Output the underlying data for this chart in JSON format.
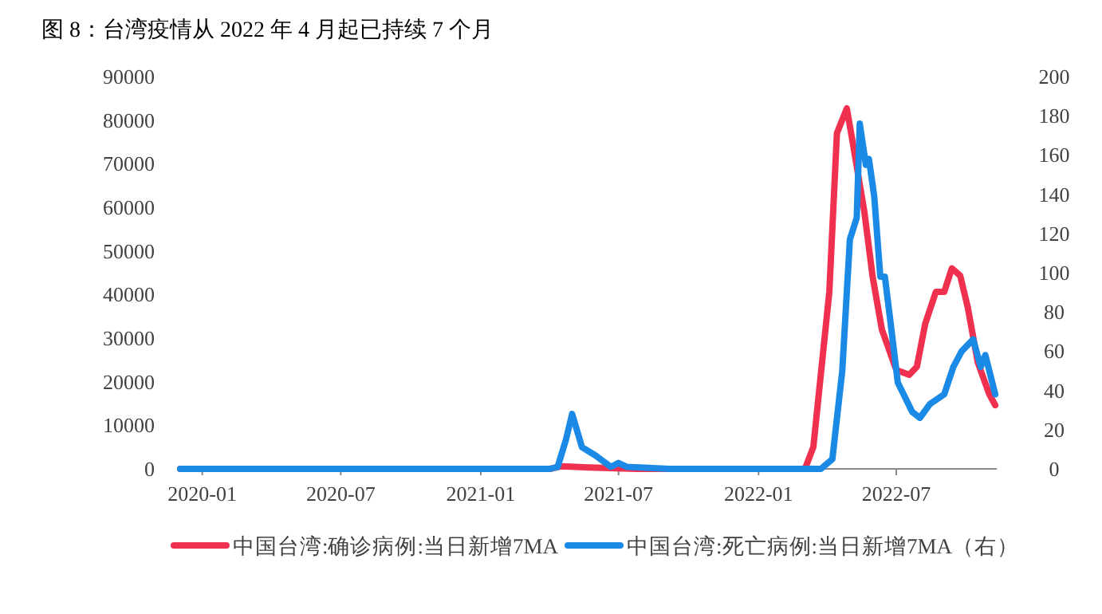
{
  "chart_data": {
    "type": "line",
    "title": "图 8：台湾疫情从 2022 年 4 月起已持续 7 个月",
    "xlim": [
      "2019-12-03",
      "2022-11-10"
    ],
    "xticks": [
      {
        "value": "2020-01-01",
        "label": "2020-01"
      },
      {
        "value": "2020-07-01",
        "label": "2020-07"
      },
      {
        "value": "2021-01-01",
        "label": "2021-01"
      },
      {
        "value": "2021-07-01",
        "label": "2021-07"
      },
      {
        "value": "2022-01-01",
        "label": "2022-01"
      },
      {
        "value": "2022-07-01",
        "label": "2022-07"
      }
    ],
    "ylim": [
      0,
      90000
    ],
    "yticks": [
      0,
      10000,
      20000,
      30000,
      40000,
      50000,
      60000,
      70000,
      80000,
      90000
    ],
    "y2lim": [
      0,
      200
    ],
    "y2ticks": [
      0,
      20,
      40,
      60,
      80,
      100,
      120,
      140,
      160,
      180,
      200
    ],
    "legend": "bottom",
    "grid": false,
    "line_style": "solid",
    "marker": "none",
    "series": [
      {
        "name": "中国台湾:确诊病例:当日新增7MA",
        "color": "#f0304f",
        "x": [
          "2019-12-03",
          "2021-04-02",
          "2021-04-17",
          "2021-05-24",
          "2021-07-26",
          "2022-03-03",
          "2022-03-14",
          "2022-04-04",
          "2022-04-14",
          "2022-04-27",
          "2022-05-05",
          "2022-05-20",
          "2022-05-31",
          "2022-06-12",
          "2022-07-01",
          "2022-07-18",
          "2022-07-28",
          "2022-08-08",
          "2022-08-22",
          "2022-09-02",
          "2022-09-12",
          "2022-09-23",
          "2022-10-03",
          "2022-10-16",
          "2022-10-31",
          "2022-11-08"
        ],
        "values": [
          0,
          0,
          600,
          300,
          0,
          0,
          5000,
          40600,
          77000,
          82700,
          74600,
          59000,
          44000,
          32000,
          22700,
          21600,
          23400,
          33300,
          40600,
          40600,
          46000,
          44300,
          37000,
          24500,
          17200,
          14600
        ]
      },
      {
        "name": "中国台湾:死亡病例:当日新增7MA（右）",
        "color": "#1a8ae6",
        "axis": "y2",
        "x": [
          "2019-12-03",
          "2021-04-02",
          "2021-04-12",
          "2021-04-23",
          "2021-05-01",
          "2021-05-14",
          "2021-05-31",
          "2021-06-21",
          "2021-07-01",
          "2021-07-12",
          "2021-09-06",
          "2022-03-24",
          "2022-04-08",
          "2022-04-21",
          "2022-05-01",
          "2022-05-10",
          "2022-05-14",
          "2022-05-22",
          "2022-05-26",
          "2022-06-02",
          "2022-06-10",
          "2022-06-16",
          "2022-06-23",
          "2022-07-03",
          "2022-07-22",
          "2022-08-01",
          "2022-08-14",
          "2022-09-02",
          "2022-09-14",
          "2022-09-25",
          "2022-10-10",
          "2022-10-20",
          "2022-10-26",
          "2022-11-08"
        ],
        "values": [
          0,
          0,
          1,
          15,
          28,
          11,
          7,
          1,
          3,
          1,
          0,
          0,
          5,
          50,
          117,
          128,
          176,
          155,
          158,
          139,
          98,
          98,
          76,
          44,
          29,
          26,
          33,
          38,
          52,
          60,
          66,
          52,
          58,
          38
        ]
      }
    ]
  }
}
